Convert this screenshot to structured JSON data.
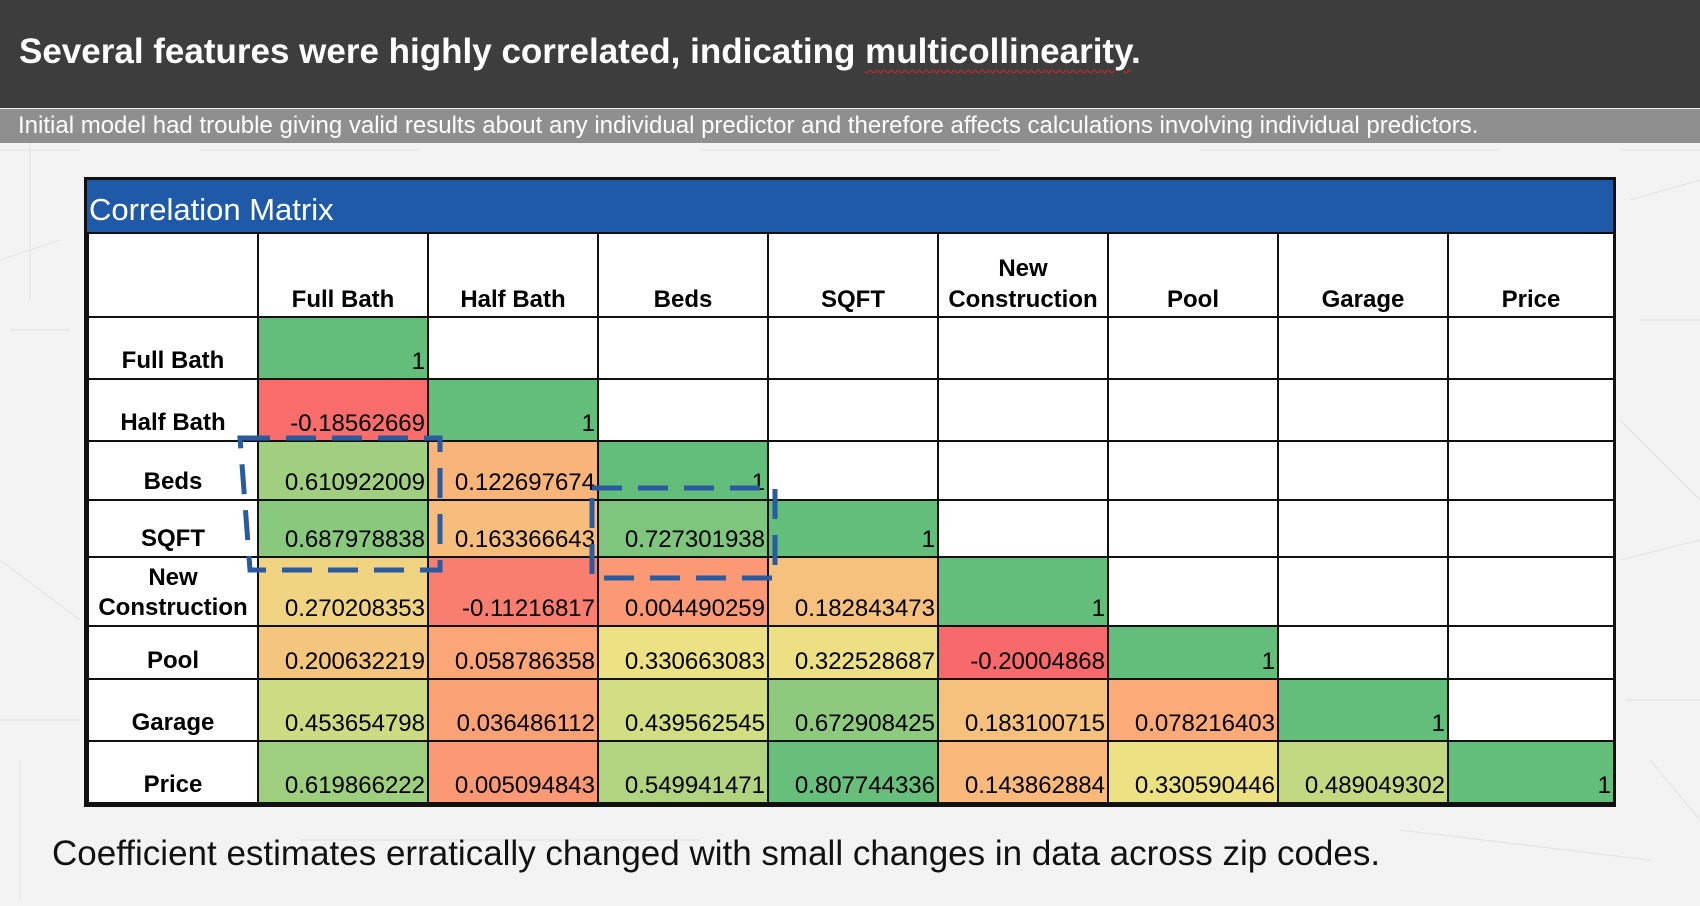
{
  "title": {
    "text_before": "Several features were highly correlated, indicating ",
    "text_underlined": "multicollinearity",
    "text_after": "."
  },
  "subtitle": "Initial model had trouble giving valid results about any individual predictor and therefore affects calculations involving individual predictors.",
  "matrix": {
    "heading": "Correlation Matrix",
    "columns": [
      "Full Bath",
      "Half Bath",
      "Beds",
      "SQFT",
      "New Construction",
      "Pool",
      "Garage",
      "Price"
    ],
    "rows": [
      {
        "label": "Full Bath",
        "values": [
          "1"
        ]
      },
      {
        "label": "Half Bath",
        "values": [
          "-0.18562669",
          "1"
        ]
      },
      {
        "label": "Beds",
        "values": [
          "0.610922009",
          "0.122697674",
          "1"
        ]
      },
      {
        "label": "SQFT",
        "values": [
          "0.687978838",
          "0.163366643",
          "0.727301938",
          "1"
        ]
      },
      {
        "label": "New Construction",
        "values": [
          "0.270208353",
          "-0.11216817",
          "0.004490259",
          "0.182843473",
          "1"
        ]
      },
      {
        "label": "Pool",
        "values": [
          "0.200632219",
          "0.058786358",
          "0.330663083",
          "0.322528687",
          "-0.20004868",
          "1"
        ]
      },
      {
        "label": "Garage",
        "values": [
          "0.453654798",
          "0.036486112",
          "0.439562545",
          "0.672908425",
          "0.183100715",
          "0.078216403",
          "1"
        ]
      },
      {
        "label": "Price",
        "values": [
          "0.619866222",
          "0.005094843",
          "0.549941471",
          "0.807744336",
          "0.143862884",
          "0.330590446",
          "0.489049302",
          "1"
        ]
      }
    ],
    "colors": {
      "header_blue": "#1f5aa8",
      "highlight_dash": "#2a5aa0"
    }
  },
  "note": "Coefficient estimates erratically changed with small changes in data across zip codes."
}
